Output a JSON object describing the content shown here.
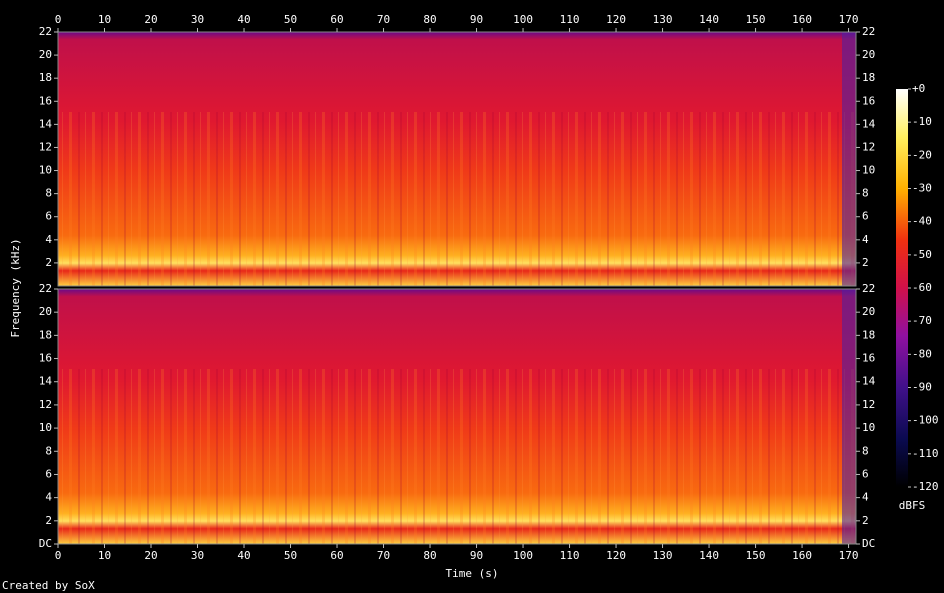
{
  "chart_data": {
    "type": "spectrogram",
    "xlabel": "Time (s)",
    "ylabel": "Frequency (kHz)",
    "xlim": [
      0,
      171.6
    ],
    "xticks": [
      0,
      10,
      20,
      30,
      40,
      50,
      60,
      70,
      80,
      90,
      100,
      110,
      120,
      130,
      140,
      150,
      160,
      170
    ],
    "panels": [
      {
        "ylim": [
          0,
          22
        ],
        "yticks": [
          2,
          4,
          6,
          8,
          10,
          12,
          14,
          16,
          18,
          20,
          22
        ]
      },
      {
        "ylim": [
          0,
          22
        ],
        "yticks": [
          {
            "value": 0,
            "label": "DC"
          },
          2,
          4,
          6,
          8,
          10,
          12,
          14,
          16,
          18,
          20,
          22
        ]
      }
    ],
    "colorbar": {
      "label": "dBFS",
      "lim": [
        -120,
        0
      ],
      "ticks": [
        {
          "value": 0,
          "label": "+0"
        },
        -10,
        -20,
        -30,
        -40,
        -50,
        -60,
        -70,
        -80,
        -90,
        -100,
        -110,
        -120
      ]
    },
    "footer": "Created by SoX"
  }
}
